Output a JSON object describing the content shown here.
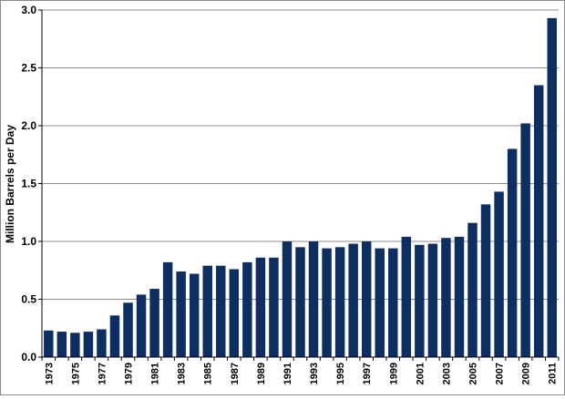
{
  "chart_data": {
    "type": "bar",
    "title": "",
    "xlabel": "",
    "ylabel": "Million Barrels per Day",
    "ylim": [
      0,
      3.0
    ],
    "yticks": [
      0.0,
      0.5,
      1.0,
      1.5,
      2.0,
      2.5,
      3.0
    ],
    "ytick_labels": [
      "0.0",
      "0.5",
      "1.0",
      "1.5",
      "2.0",
      "2.5",
      "3.0"
    ],
    "categories": [
      "1973",
      "1974",
      "1975",
      "1976",
      "1977",
      "1978",
      "1979",
      "1980",
      "1981",
      "1982",
      "1983",
      "1984",
      "1985",
      "1986",
      "1987",
      "1988",
      "1989",
      "1990",
      "1991",
      "1992",
      "1993",
      "1994",
      "1995",
      "1996",
      "1997",
      "1998",
      "1999",
      "2000",
      "2001",
      "2002",
      "2003",
      "2004",
      "2005",
      "2006",
      "2007",
      "2008",
      "2009",
      "2010",
      "2011"
    ],
    "xtick_labels": [
      "1973",
      "",
      "1975",
      "",
      "1977",
      "",
      "1979",
      "",
      "1981",
      "",
      "1983",
      "",
      "1985",
      "",
      "1987",
      "",
      "1989",
      "",
      "1991",
      "",
      "1993",
      "",
      "1995",
      "",
      "1997",
      "",
      "1999",
      "",
      "2001",
      "",
      "2003",
      "",
      "2005",
      "",
      "2007",
      "",
      "2009",
      "",
      "2011"
    ],
    "values": [
      0.23,
      0.22,
      0.21,
      0.22,
      0.24,
      0.36,
      0.47,
      0.54,
      0.59,
      0.82,
      0.74,
      0.72,
      0.79,
      0.79,
      0.76,
      0.82,
      0.86,
      0.86,
      1.0,
      0.95,
      1.0,
      0.94,
      0.95,
      0.98,
      1.0,
      0.94,
      0.94,
      1.04,
      0.97,
      0.98,
      1.03,
      1.04,
      1.16,
      1.32,
      1.43,
      1.8,
      2.02,
      2.35,
      2.93
    ],
    "grid": true,
    "legend": "none",
    "bar_color": "#0e2d60"
  }
}
